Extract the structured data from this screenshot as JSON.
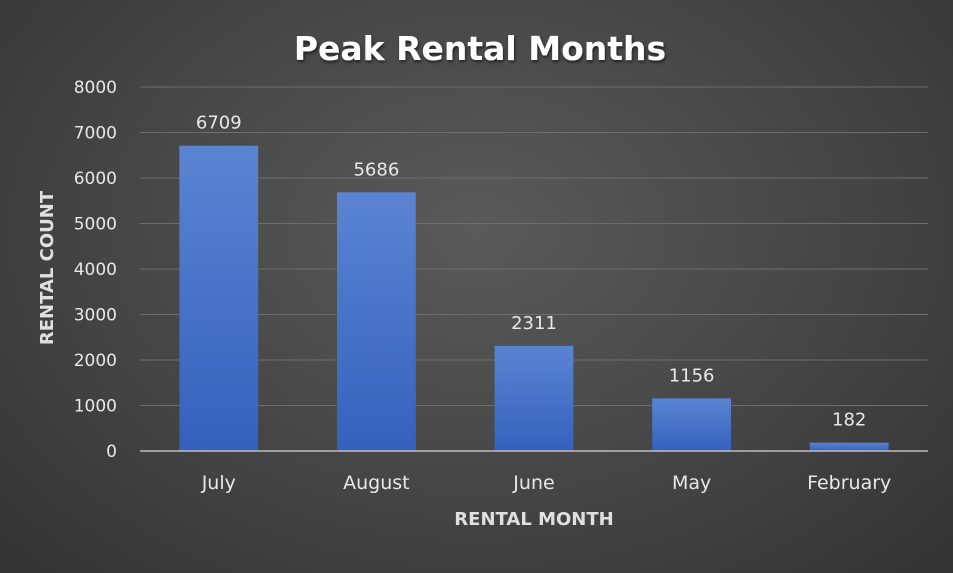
{
  "chart_data": {
    "type": "bar",
    "title": "Peak Rental Months",
    "xlabel": "RENTAL MONTH",
    "ylabel": "RENTAL COUNT",
    "categories": [
      "July",
      "August",
      "June",
      "May",
      "February"
    ],
    "values": [
      6709,
      5686,
      2311,
      1156,
      182
    ],
    "ylim": [
      0,
      8000
    ],
    "yticks": [
      0,
      1000,
      2000,
      3000,
      4000,
      5000,
      6000,
      7000,
      8000
    ],
    "grid": true,
    "legend": "none",
    "bar_color": "#4472c4"
  }
}
